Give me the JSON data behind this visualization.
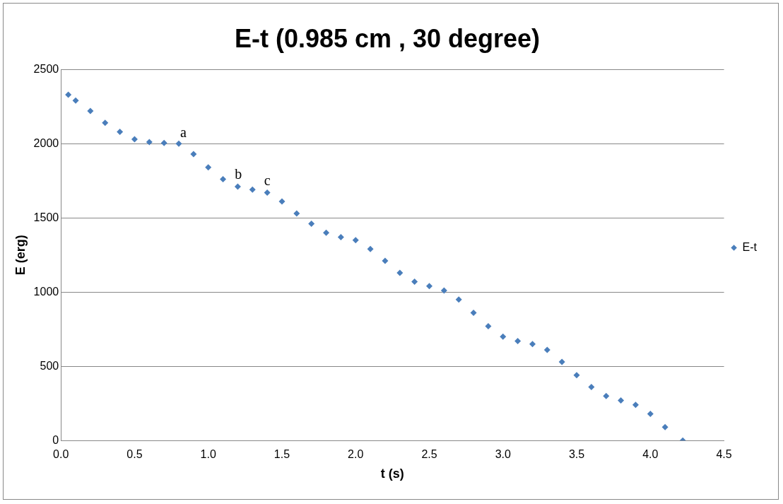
{
  "chart_data": {
    "type": "scatter",
    "title": "E-t (0.985 cm , 30 degree)",
    "xlabel": "t (s)",
    "ylabel": "E (erg)",
    "series": [
      {
        "name": "E-t",
        "color": "#4a7ebb",
        "x": [
          0.05,
          0.1,
          0.2,
          0.3,
          0.4,
          0.5,
          0.6,
          0.7,
          0.8,
          0.9,
          1.0,
          1.1,
          1.2,
          1.3,
          1.4,
          1.5,
          1.6,
          1.7,
          1.8,
          1.9,
          2.0,
          2.1,
          2.2,
          2.3,
          2.4,
          2.5,
          2.6,
          2.7,
          2.8,
          2.9,
          3.0,
          3.1,
          3.2,
          3.3,
          3.4,
          3.5,
          3.6,
          3.7,
          3.8,
          3.9,
          4.0,
          4.1,
          4.22
        ],
        "values": [
          2330,
          2290,
          2220,
          2140,
          2080,
          2030,
          2010,
          2005,
          2000,
          1930,
          1840,
          1760,
          1710,
          1690,
          1670,
          1610,
          1530,
          1460,
          1400,
          1370,
          1350,
          1290,
          1210,
          1130,
          1070,
          1040,
          1010,
          950,
          860,
          770,
          700,
          670,
          650,
          610,
          530,
          440,
          360,
          300,
          270,
          240,
          180,
          90,
          0
        ]
      }
    ],
    "xlim": [
      0,
      4.5
    ],
    "xticks": [
      {
        "value": 0,
        "label": "0.0"
      },
      {
        "value": 0.5,
        "label": "0.5"
      },
      {
        "value": 1,
        "label": "1.0"
      },
      {
        "value": 1.5,
        "label": "1.5"
      },
      {
        "value": 2,
        "label": "2.0"
      },
      {
        "value": 2.5,
        "label": "2.5"
      },
      {
        "value": 3,
        "label": "3.0"
      },
      {
        "value": 3.5,
        "label": "3.5"
      },
      {
        "value": 4,
        "label": "4.0"
      },
      {
        "value": 4.5,
        "label": "4.5"
      }
    ],
    "ylim": [
      0,
      2500
    ],
    "yticks": [
      0,
      500,
      1000,
      1500,
      2000,
      2500
    ],
    "grid": "y",
    "legend": "right",
    "marker": "diamond",
    "annotations": [
      {
        "text": "a",
        "x": 0.8,
        "y": 2000
      },
      {
        "text": "b",
        "x": 1.17,
        "y": 1720
      },
      {
        "text": "c",
        "x": 1.37,
        "y": 1680
      }
    ]
  }
}
